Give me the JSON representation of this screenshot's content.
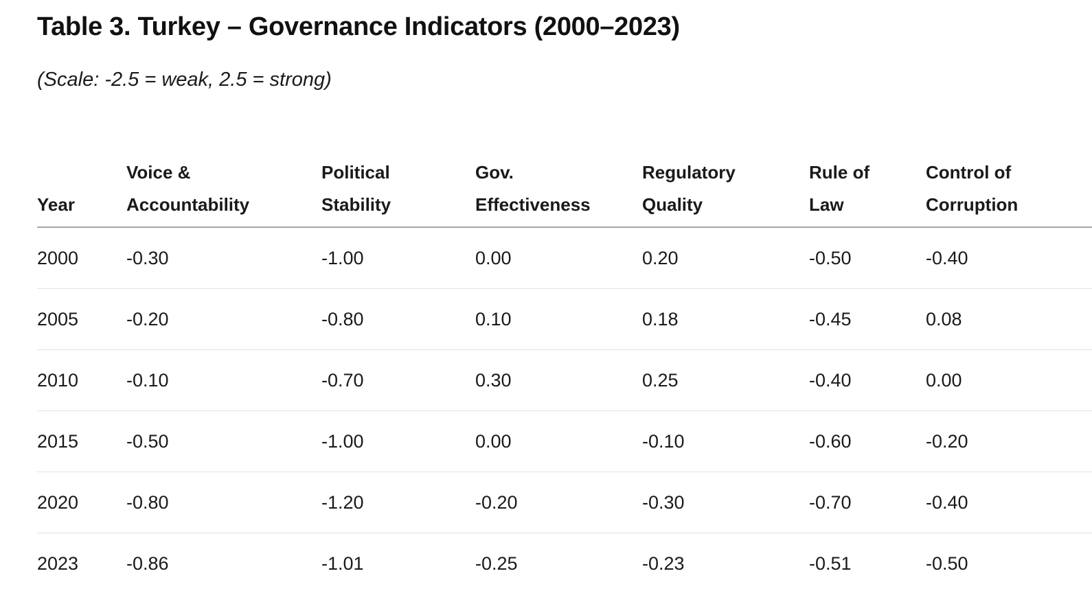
{
  "title": "Table 3. Turkey – Governance Indicators (2000–2023)",
  "subtitle": "(Scale: -2.5 = weak, 2.5 = strong)",
  "table": {
    "headers": [
      [
        "",
        "Year"
      ],
      [
        "Voice &",
        "Accountability"
      ],
      [
        "Political",
        "Stability"
      ],
      [
        "Gov.",
        "Effectiveness"
      ],
      [
        "Regulatory",
        "Quality"
      ],
      [
        "Rule of",
        "Law"
      ],
      [
        "Control of",
        "Corruption"
      ]
    ],
    "rows": [
      [
        "2000",
        "-0.30",
        "-1.00",
        "0.00",
        "0.20",
        "-0.50",
        "-0.40"
      ],
      [
        "2005",
        "-0.20",
        "-0.80",
        "0.10",
        "0.18",
        "-0.45",
        "0.08"
      ],
      [
        "2010",
        "-0.10",
        "-0.70",
        "0.30",
        "0.25",
        "-0.40",
        "0.00"
      ],
      [
        "2015",
        "-0.50",
        "-1.00",
        "0.00",
        "-0.10",
        "-0.60",
        "-0.20"
      ],
      [
        "2020",
        "-0.80",
        "-1.20",
        "-0.20",
        "-0.30",
        "-0.70",
        "-0.40"
      ],
      [
        "2023",
        "-0.86",
        "-1.01",
        "-0.25",
        "-0.23",
        "-0.51",
        "-0.50"
      ]
    ]
  }
}
